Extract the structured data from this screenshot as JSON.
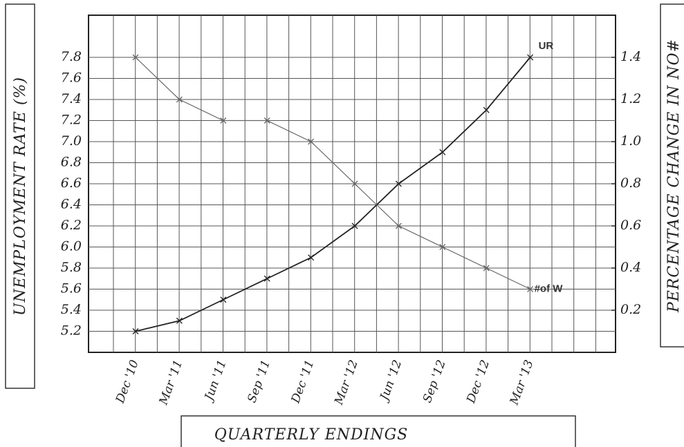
{
  "chart_data": {
    "type": "line",
    "y_label": "UNEMPLOYMENT RATE (%)",
    "y2_label": "PERCENTAGE CHANGE IN NO#",
    "x_label": "QUARTERLY ENDINGS",
    "categories": [
      "Dec '10",
      "Mar '11",
      "Jun '11",
      "Sep '11",
      "Dec '11",
      "Mar '12",
      "Jun '12",
      "Sep '12",
      "Dec '12",
      "Mar '13"
    ],
    "series": [
      {
        "name": "UR",
        "color": "#222222",
        "values": [
          5.2,
          5.3,
          5.5,
          5.7,
          5.9,
          6.2,
          6.6,
          6.9,
          7.3,
          7.8
        ]
      },
      {
        "name": "#of W",
        "color": "#666666",
        "axis": "y2",
        "values": [
          1.4,
          1.2,
          1.1,
          1.1,
          1.0,
          0.8,
          0.6,
          0.5,
          0.4,
          0.3
        ]
      }
    ],
    "ylim": [
      5.0,
      8.2
    ],
    "yticks": [
      5.2,
      5.4,
      5.6,
      5.8,
      {
        "value": 6,
        "label": "6.0"
      },
      6.2,
      6.4,
      6.6,
      6.8,
      {
        "value": 7,
        "label": "7.0"
      },
      7.2,
      7.4,
      7.6,
      7.8
    ],
    "y2lim": [
      0,
      1.6
    ],
    "y2ticks": [
      0.2,
      0.4,
      0.6,
      0.8,
      {
        "value": 1,
        "label": "1.0"
      },
      1.2,
      1.4
    ],
    "grid": true
  }
}
